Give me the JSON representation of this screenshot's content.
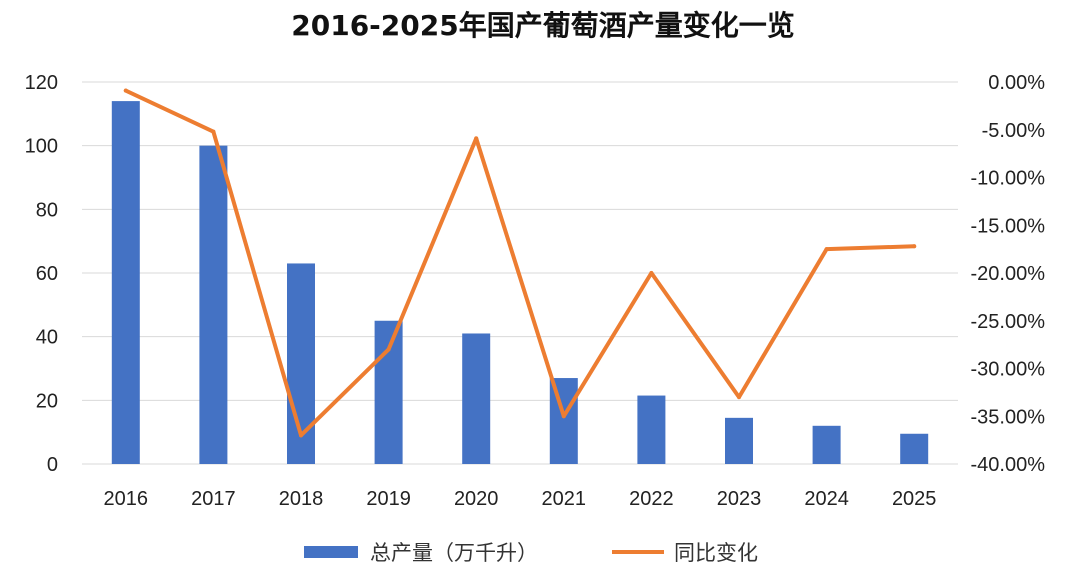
{
  "chart_data": {
    "type": "bar",
    "title": "2016-2025年国产葡萄酒产量变化一览",
    "categories": [
      "2016",
      "2017",
      "2018",
      "2019",
      "2020",
      "2021",
      "2022",
      "2023",
      "2024",
      "2025"
    ],
    "series": [
      {
        "name": "总产量（万千升）",
        "type": "bar",
        "axis": "left",
        "color": "#4472C4",
        "values": [
          114,
          100,
          63,
          45,
          41,
          27,
          21.5,
          14.5,
          12,
          9.5
        ]
      },
      {
        "name": "同比变化",
        "type": "line",
        "axis": "right",
        "color": "#ED7D31",
        "values": [
          -0.009,
          -0.052,
          -0.37,
          -0.28,
          -0.059,
          -0.35,
          -0.2,
          -0.33,
          -0.175,
          -0.172
        ]
      }
    ],
    "y_left": {
      "min": 0,
      "max": 120,
      "step": 20,
      "ticks": [
        "0",
        "20",
        "40",
        "60",
        "80",
        "100",
        "120"
      ]
    },
    "y_right": {
      "min": -0.4,
      "max": 0,
      "step": 0.05,
      "ticks": [
        "0.00%",
        "-5.00%",
        "-10.00%",
        "-15.00%",
        "-20.00%",
        "-25.00%",
        "-30.00%",
        "-35.00%",
        "-40.00%"
      ]
    },
    "grid": true,
    "legend_position": "bottom"
  }
}
